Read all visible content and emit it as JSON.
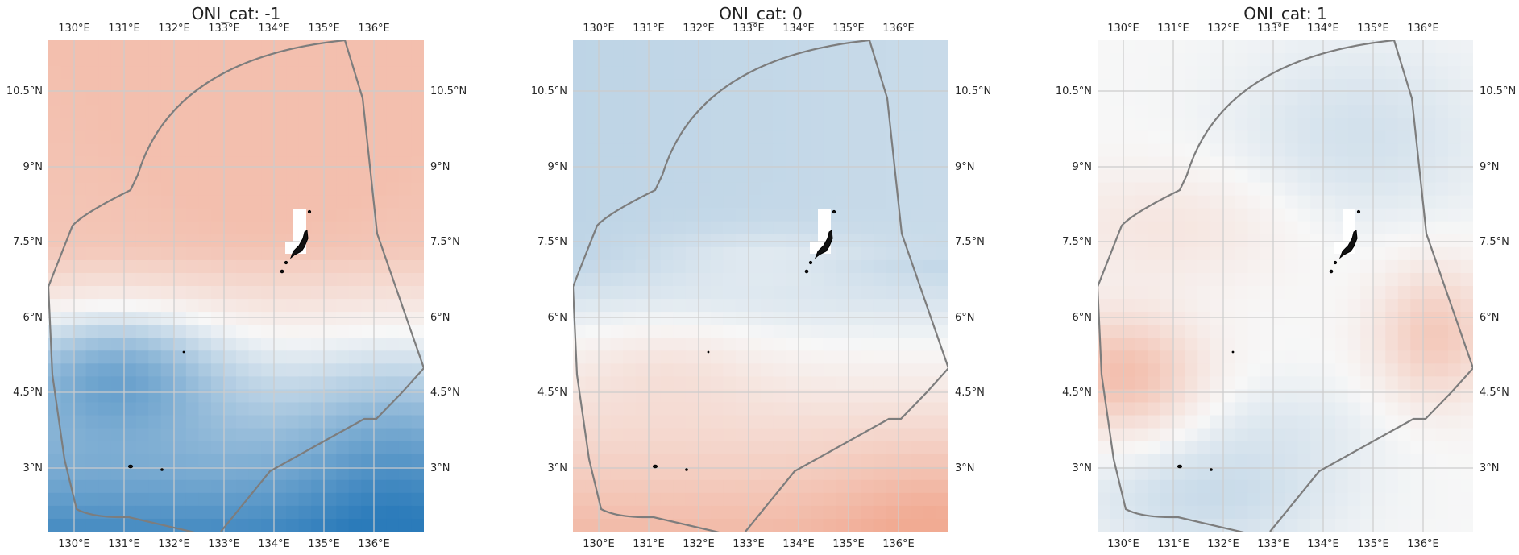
{
  "figure": {
    "panels": [
      {
        "id": "neg",
        "title": "ONI_cat: -1",
        "pattern": "cold_south"
      },
      {
        "id": "zero",
        "title": "ONI_cat: 0",
        "pattern": "warm_south"
      },
      {
        "id": "pos",
        "title": "ONI_cat: 1",
        "pattern": "neutral_mix"
      }
    ],
    "lon_ticks": [
      "130°E",
      "131°E",
      "132°E",
      "133°E",
      "134°E",
      "135°E",
      "136°E"
    ],
    "lat_ticks": [
      "10.5°N",
      "9°N",
      "7.5°N",
      "6°N",
      "4.5°N",
      "3°N"
    ],
    "colors": {
      "cold": "#2b7bba",
      "neutral": "#f7f7f7",
      "warm": "#ef9172",
      "boundary": "#7d7d7d",
      "grid": "#cccccc"
    }
  }
}
